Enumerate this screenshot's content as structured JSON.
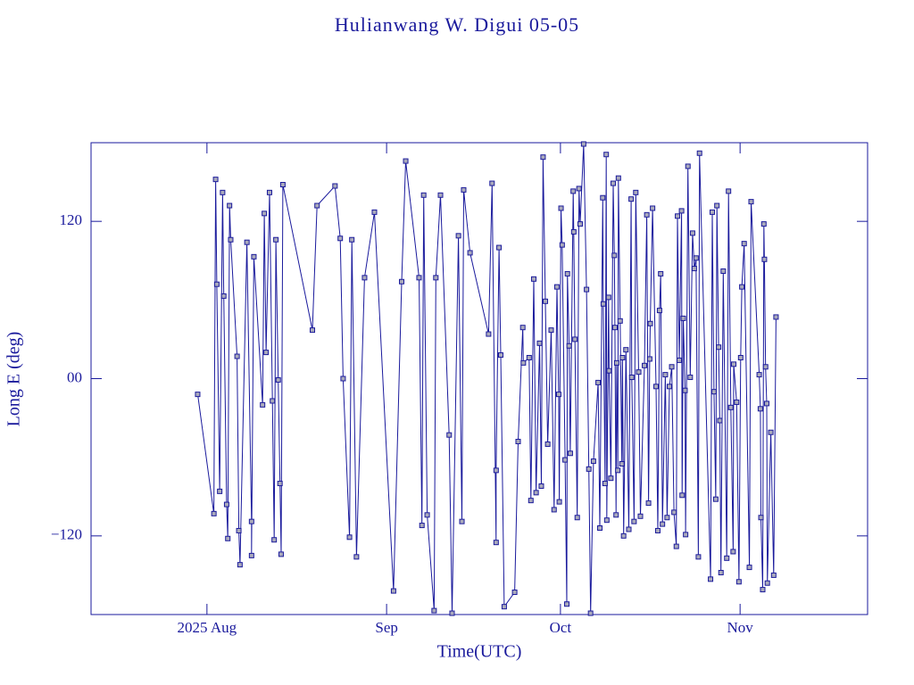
{
  "chart_data": {
    "type": "line",
    "title": "Hulianwang W. Digui 05-05",
    "xlabel": "Time(UTC)",
    "ylabel": "Long E (deg)",
    "color": "#1a1a9c",
    "xlim": [
      193,
      327
    ],
    "xticks": [
      {
        "value": 213,
        "label": "2025 Aug"
      },
      {
        "value": 244,
        "label": "Sep"
      },
      {
        "value": 274,
        "label": "Oct"
      },
      {
        "value": 305,
        "label": "Nov"
      }
    ],
    "ylim": [
      -180,
      180
    ],
    "yticks": [
      {
        "value": -120,
        "label": "−120"
      },
      {
        "value": 0,
        "label": "00"
      },
      120
    ],
    "x": [
      211.4,
      214.2,
      214.5,
      214.7,
      215.2,
      215.7,
      215.9,
      216.4,
      216.6,
      216.9,
      217.1,
      218.2,
      218.5,
      218.7,
      219.9,
      220.7,
      220.7,
      221.1,
      222.6,
      222.9,
      223.2,
      223.8,
      224.3,
      224.6,
      224.9,
      225.3,
      225.6,
      225.8,
      226.1,
      231.2,
      232.0,
      235.1,
      236.0,
      236.5,
      237.6,
      238.0,
      238.8,
      240.2,
      241.9,
      245.2,
      246.6,
      247.3,
      249.6,
      250.1,
      250.4,
      251.0,
      252.2,
      252.5,
      253.3,
      254.8,
      255.3,
      256.4,
      257.0,
      257.3,
      258.4,
      261.6,
      262.2,
      262.9,
      262.9,
      263.4,
      263.7,
      264.3,
      266.1,
      266.7,
      267.5,
      267.6,
      268.6,
      268.9,
      269.4,
      269.8,
      270.4,
      270.7,
      271.0,
      271.4,
      271.8,
      272.4,
      272.9,
      273.4,
      273.7,
      273.8,
      274.1,
      274.3,
      274.8,
      275.1,
      275.2,
      275.5,
      275.7,
      276.2,
      276.3,
      276.5,
      276.9,
      277.2,
      277.4,
      278.0,
      278.5,
      278.9,
      279.2,
      279.7,
      280.5,
      280.8,
      281.3,
      281.4,
      281.7,
      281.9,
      282.0,
      282.3,
      282.4,
      282.7,
      283.1,
      283.3,
      283.4,
      283.6,
      283.7,
      283.9,
      284.0,
      284.3,
      284.6,
      284.7,
      284.9,
      285.3,
      285.8,
      286.2,
      286.3,
      286.7,
      287.0,
      287.5,
      287.8,
      288.5,
      288.9,
      289.2,
      289.4,
      289.5,
      289.9,
      290.5,
      290.8,
      291.1,
      291.3,
      291.6,
      292.1,
      292.4,
      292.8,
      293.2,
      293.6,
      294.0,
      294.2,
      294.5,
      294.9,
      295.0,
      295.2,
      295.5,
      295.6,
      296.0,
      296.4,
      296.8,
      297.1,
      297.4,
      297.8,
      298.0,
      299.9,
      300.2,
      300.5,
      300.8,
      301.0,
      301.3,
      301.5,
      301.7,
      302.1,
      302.7,
      303.0,
      303.4,
      303.8,
      303.9,
      304.4,
      304.8,
      305.1,
      305.3,
      305.7,
      306.6,
      306.9,
      308.3,
      308.5,
      308.6,
      308.9,
      309.1,
      309.2,
      309.4,
      309.6,
      309.7,
      310.3,
      310.8,
      311.2
    ],
    "values": [
      -12,
      -103,
      152,
      72,
      -86,
      142,
      63,
      -96,
      -122,
      132,
      106,
      17,
      -116,
      -142,
      104,
      -109,
      -135,
      93,
      -20,
      126,
      20,
      142,
      -17,
      -123,
      106,
      -1,
      -80,
      -134,
      148,
      37,
      132,
      147,
      107,
      0,
      -121,
      106,
      -136,
      77,
      127,
      -162,
      74,
      166,
      77,
      -112,
      140,
      -104,
      -177,
      77,
      140,
      -43,
      -179,
      109,
      -109,
      144,
      96,
      34,
      149,
      -125,
      -70,
      100,
      18,
      -174,
      -163,
      -48,
      39,
      12,
      16,
      -93,
      76,
      -87,
      27,
      -82,
      169,
      59,
      -50,
      37,
      -100,
      70,
      -12,
      -94,
      130,
      102,
      -62,
      -172,
      80,
      25,
      -57,
      143,
      112,
      30,
      -106,
      145,
      118,
      179,
      68,
      -69,
      -179,
      -63,
      -3,
      -114,
      138,
      57,
      -80,
      171,
      -108,
      62,
      6,
      -76,
      149,
      94,
      39,
      -104,
      12,
      -70,
      153,
      44,
      -65,
      16,
      -120,
      22,
      -115,
      137,
      1,
      -109,
      142,
      5,
      -105,
      10,
      125,
      -95,
      15,
      42,
      130,
      -6,
      -116,
      52,
      80,
      -111,
      3,
      -106,
      -6,
      9,
      -102,
      -128,
      124,
      14,
      128,
      -89,
      46,
      -9,
      -119,
      162,
      1,
      111,
      84,
      92,
      -136,
      172,
      -153,
      127,
      -10,
      -92,
      132,
      24,
      -32,
      -148,
      82,
      -137,
      143,
      -22,
      -132,
      11,
      -18,
      -155,
      16,
      70,
      103,
      -144,
      135,
      3,
      -23,
      -106,
      -161,
      118,
      91,
      9,
      -19,
      -156,
      -41,
      -150,
      47
    ]
  }
}
